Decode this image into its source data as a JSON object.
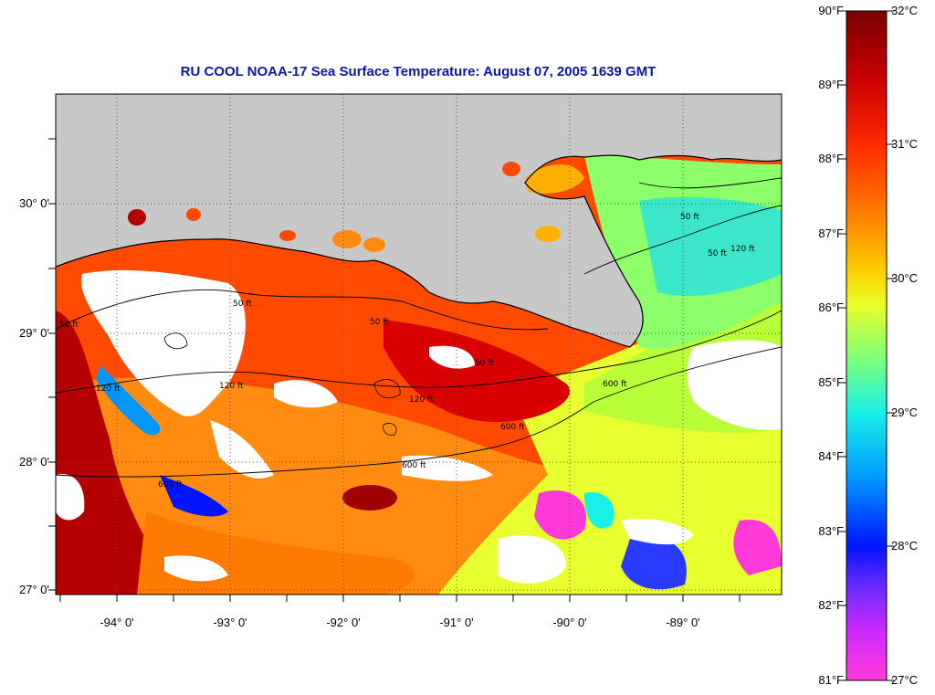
{
  "title": "RU COOL  NOAA-17  Sea Surface Temperature:  August 07, 2005 1639 GMT",
  "latitude_labels": [
    "30° 0'",
    "29° 0'",
    "28° 0'",
    "27° 0'"
  ],
  "longitude_labels": [
    "-94° 0'",
    "-93° 0'",
    "-92° 0'",
    "-91° 0'",
    "-90° 0'",
    "-89° 0'"
  ],
  "colorbar": {
    "fahrenheit": [
      "90°F",
      "89°F",
      "88°F",
      "87°F",
      "86°F",
      "85°F",
      "84°F",
      "83°F",
      "82°F",
      "81°F"
    ],
    "celsius": [
      "32°C",
      "31°C",
      "30°C",
      "29°C",
      "28°C",
      "27°C"
    ],
    "colors": [
      "#7a0000",
      "#c80000",
      "#ff2a00",
      "#ff7a00",
      "#ffd000",
      "#e6ff2a",
      "#7dff7a",
      "#19f0e8",
      "#0096ff",
      "#0014ff",
      "#6a2aff",
      "#d02aff",
      "#ff3ad8"
    ]
  },
  "depth_contour_labels": [
    "50 ft",
    "120 ft",
    "600 ft",
    "50 ft",
    "120 ft",
    "600 ft",
    "600 ft",
    "600 ft",
    "50 ft",
    "120 ft",
    "50 ft",
    "120 ft",
    "50 ft",
    "50 ft"
  ],
  "colors": {
    "land": "#c8c8c8",
    "cloud": "#ffffff",
    "title": "#0a17a8"
  }
}
